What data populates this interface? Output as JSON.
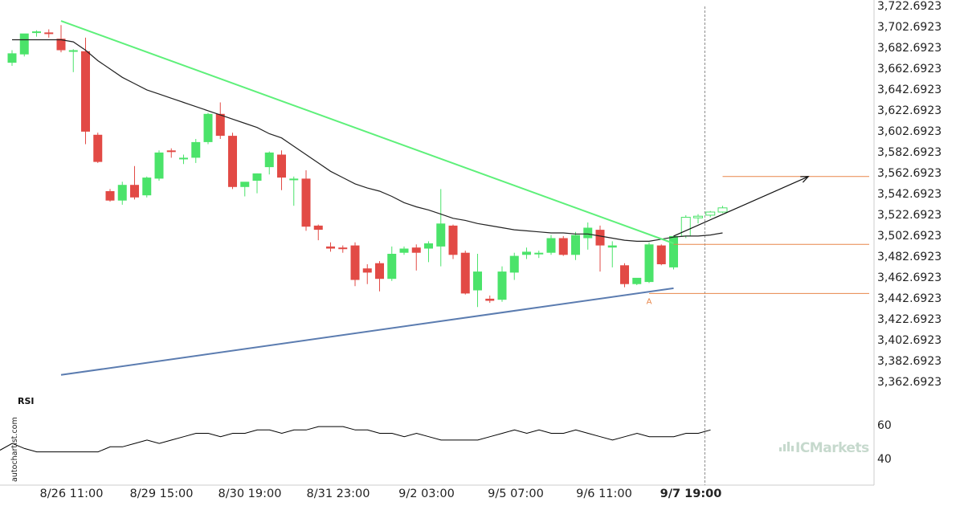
{
  "chart_data": {
    "type": "candlestick",
    "y_ticks": [
      "3,722.6923",
      "3,702.6923",
      "3,682.6923",
      "3,662.6923",
      "3,642.6923",
      "3,622.6923",
      "3,602.6923",
      "3,582.6923",
      "3,562.6923",
      "3,542.6923",
      "3,522.6923",
      "3,502.6923",
      "3,482.6923",
      "3,462.6923",
      "3,442.6923",
      "3,422.6923",
      "3,402.6923",
      "3,382.6923",
      "3,362.6923"
    ],
    "x_ticks": [
      "8/26 11:00",
      "8/29 15:00",
      "8/30 19:00",
      "8/31 23:00",
      "9/2 03:00",
      "9/5 07:00",
      "9/6 11:00",
      "9/7 19:00"
    ],
    "highlight_x_tick": "9/7 19:00",
    "ylim": [
      3362.6923,
      3722.6923
    ],
    "candles": [
      {
        "o": 3668,
        "h": 3680,
        "l": 3665,
        "c": 3677
      },
      {
        "o": 3676,
        "h": 3694,
        "l": 3674,
        "c": 3696
      },
      {
        "o": 3697,
        "h": 3699,
        "l": 3693,
        "c": 3698
      },
      {
        "o": 3697,
        "h": 3700,
        "l": 3692,
        "c": 3696
      },
      {
        "o": 3691,
        "h": 3704,
        "l": 3678,
        "c": 3680
      },
      {
        "o": 3680,
        "h": 3681,
        "l": 3659,
        "c": 3680
      },
      {
        "o": 3679,
        "h": 3692,
        "l": 3590,
        "c": 3602
      },
      {
        "o": 3599,
        "h": 3601,
        "l": 3572,
        "c": 3573
      },
      {
        "o": 3545,
        "h": 3547,
        "l": 3535,
        "c": 3536
      },
      {
        "o": 3536,
        "h": 3554,
        "l": 3532,
        "c": 3551
      },
      {
        "o": 3551,
        "h": 3569,
        "l": 3537,
        "c": 3539
      },
      {
        "o": 3541,
        "h": 3559,
        "l": 3539,
        "c": 3558
      },
      {
        "o": 3557,
        "h": 3584,
        "l": 3555,
        "c": 3582
      },
      {
        "o": 3584,
        "h": 3586,
        "l": 3577,
        "c": 3583
      },
      {
        "o": 3576,
        "h": 3580,
        "l": 3571,
        "c": 3577
      },
      {
        "o": 3577,
        "h": 3595,
        "l": 3572,
        "c": 3592
      },
      {
        "o": 3592,
        "h": 3620,
        "l": 3590,
        "c": 3619
      },
      {
        "o": 3619,
        "h": 3630,
        "l": 3595,
        "c": 3598
      },
      {
        "o": 3598,
        "h": 3601,
        "l": 3547,
        "c": 3549
      },
      {
        "o": 3549,
        "h": 3553,
        "l": 3540,
        "c": 3554
      },
      {
        "o": 3555,
        "h": 3562,
        "l": 3543,
        "c": 3562
      },
      {
        "o": 3568,
        "h": 3583,
        "l": 3561,
        "c": 3582
      },
      {
        "o": 3580,
        "h": 3584,
        "l": 3546,
        "c": 3558
      },
      {
        "o": 3556,
        "h": 3559,
        "l": 3531,
        "c": 3557
      },
      {
        "o": 3557,
        "h": 3565,
        "l": 3507,
        "c": 3511
      },
      {
        "o": 3512,
        "h": 3513,
        "l": 3498,
        "c": 3508
      },
      {
        "o": 3492,
        "h": 3496,
        "l": 3487,
        "c": 3490
      },
      {
        "o": 3491,
        "h": 3493,
        "l": 3486,
        "c": 3490
      },
      {
        "o": 3493,
        "h": 3496,
        "l": 3454,
        "c": 3460
      },
      {
        "o": 3471,
        "h": 3475,
        "l": 3456,
        "c": 3467
      },
      {
        "o": 3476,
        "h": 3478,
        "l": 3449,
        "c": 3461
      },
      {
        "o": 3461,
        "h": 3492,
        "l": 3459,
        "c": 3485
      },
      {
        "o": 3486,
        "h": 3492,
        "l": 3484,
        "c": 3490
      },
      {
        "o": 3491,
        "h": 3494,
        "l": 3469,
        "c": 3486
      },
      {
        "o": 3490,
        "h": 3497,
        "l": 3477,
        "c": 3495
      },
      {
        "o": 3492,
        "h": 3547,
        "l": 3473,
        "c": 3514
      },
      {
        "o": 3512,
        "h": 3513,
        "l": 3480,
        "c": 3484
      },
      {
        "o": 3486,
        "h": 3488,
        "l": 3446,
        "c": 3447
      },
      {
        "o": 3450,
        "h": 3485,
        "l": 3434,
        "c": 3468
      },
      {
        "o": 3442,
        "h": 3445,
        "l": 3438,
        "c": 3440
      },
      {
        "o": 3441,
        "h": 3473,
        "l": 3439,
        "c": 3468
      },
      {
        "o": 3467,
        "h": 3486,
        "l": 3460,
        "c": 3483
      },
      {
        "o": 3484,
        "h": 3491,
        "l": 3480,
        "c": 3487
      },
      {
        "o": 3486,
        "h": 3488,
        "l": 3481,
        "c": 3486
      },
      {
        "o": 3486,
        "h": 3503,
        "l": 3484,
        "c": 3500
      },
      {
        "o": 3500,
        "h": 3502,
        "l": 3483,
        "c": 3484
      },
      {
        "o": 3484,
        "h": 3506,
        "l": 3479,
        "c": 3503
      },
      {
        "o": 3500,
        "h": 3515,
        "l": 3489,
        "c": 3510
      },
      {
        "o": 3508,
        "h": 3512,
        "l": 3468,
        "c": 3493
      },
      {
        "o": 3491,
        "h": 3497,
        "l": 3472,
        "c": 3493
      },
      {
        "o": 3474,
        "h": 3476,
        "l": 3453,
        "c": 3456
      },
      {
        "o": 3456,
        "h": 3459,
        "l": 3455,
        "c": 3462
      },
      {
        "o": 3458,
        "h": 3496,
        "l": 3457,
        "c": 3494
      },
      {
        "o": 3493,
        "h": 3494,
        "l": 3474,
        "c": 3475
      },
      {
        "o": 3472,
        "h": 3502,
        "l": 3470,
        "c": 3502
      },
      {
        "o": 3502,
        "h": 3522,
        "l": 3500,
        "c": 3520
      },
      {
        "o": 3520,
        "h": 3523,
        "l": 3514,
        "c": 3521
      },
      {
        "o": 3522,
        "h": 3526,
        "l": 3520,
        "c": 3525
      },
      {
        "o": 3525,
        "h": 3531,
        "l": 3524,
        "c": 3529
      }
    ],
    "projected_candle_count": 4,
    "moving_average": [
      3690,
      3690,
      3690,
      3690,
      3690,
      3688,
      3680,
      3670,
      3662,
      3654,
      3648,
      3642,
      3638,
      3634,
      3630,
      3626,
      3622,
      3618,
      3614,
      3610,
      3606,
      3600,
      3596,
      3588,
      3580,
      3572,
      3564,
      3558,
      3552,
      3548,
      3545,
      3540,
      3534,
      3530,
      3527,
      3523,
      3519,
      3517,
      3514,
      3512,
      3510,
      3508,
      3507,
      3506,
      3505,
      3505,
      3504,
      3504,
      3502,
      3500,
      3498,
      3497,
      3497,
      3499,
      3501,
      3502,
      3502,
      3503,
      3505
    ],
    "resistance_line": {
      "from": [
        4,
        3708
      ],
      "to": [
        54,
        3495
      ]
    },
    "support_line": {
      "from": [
        4,
        3369
      ],
      "to": [
        54,
        3452
      ]
    },
    "levels": [
      {
        "from": 54,
        "value": 3494
      },
      {
        "from": 52,
        "value": 3447
      },
      {
        "from": 58,
        "value": 3559
      }
    ],
    "forecast_arrow": {
      "from": [
        54,
        3502
      ],
      "to": [
        65,
        3559
      ]
    },
    "annotation_point": {
      "label": "A",
      "x": 52,
      "y": 3440
    },
    "rsi": {
      "label": "RSI",
      "ticks": [
        "60",
        "40"
      ],
      "ylim": [
        20,
        80
      ],
      "values": [
        45,
        49,
        46,
        44,
        44,
        44,
        44,
        44,
        44,
        47,
        47,
        49,
        51,
        49,
        51,
        53,
        55,
        55,
        53,
        55,
        55,
        57,
        57,
        55,
        57,
        57,
        59,
        59,
        59,
        57,
        57,
        55,
        55,
        53,
        55,
        53,
        51,
        51,
        51,
        51,
        53,
        55,
        57,
        55,
        57,
        55,
        55,
        57,
        55,
        53,
        51,
        53,
        55,
        53,
        53,
        53,
        55,
        55,
        57
      ]
    }
  },
  "watermark": "autochartist.com",
  "logo": "ICMarkets",
  "colors": {
    "bull": "#4be36a",
    "bear": "#e24a45",
    "resistance": "#5ef07a",
    "support": "#5b7cb0",
    "level": "#e8864a",
    "ma": "#222222",
    "highlight_line": "#888888"
  }
}
